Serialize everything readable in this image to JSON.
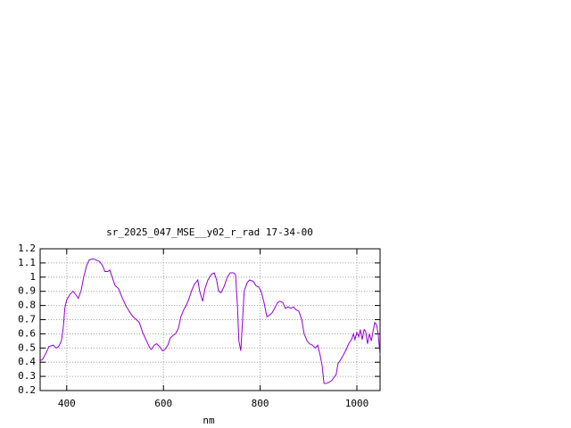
{
  "chart_data": {
    "type": "line",
    "title": "sr_2025_047_MSE__y02_r_rad 17-34-00",
    "x_label": "nm",
    "xlim": [
      345,
      1048
    ],
    "ylim": [
      0.2,
      1.2
    ],
    "xticks": [
      400,
      600,
      800,
      1000
    ],
    "yticks": [
      0.2,
      0.3,
      0.4,
      0.5,
      0.6,
      0.7,
      0.8,
      0.9,
      1,
      1.1,
      1.2
    ],
    "grid": true,
    "x": [
      345,
      350,
      358,
      363,
      372,
      378,
      383,
      389,
      393,
      396,
      400,
      407,
      413,
      418,
      424,
      430,
      435,
      441,
      446,
      454,
      461,
      468,
      474,
      479,
      485,
      489,
      494,
      500,
      507,
      514,
      522,
      529,
      537,
      544,
      550,
      557,
      565,
      572,
      575,
      581,
      586,
      592,
      598,
      603,
      609,
      614,
      620,
      625,
      631,
      636,
      642,
      647,
      653,
      659,
      664,
      671,
      675,
      681,
      686,
      692,
      699,
      705,
      710,
      714,
      719,
      725,
      732,
      738,
      745,
      749,
      753,
      756,
      760,
      764,
      767,
      773,
      778,
      786,
      791,
      797,
      802,
      808,
      814,
      819,
      825,
      830,
      836,
      841,
      847,
      852,
      858,
      863,
      869,
      874,
      880,
      886,
      891,
      897,
      902,
      908,
      914,
      919,
      924,
      928,
      932,
      937,
      943,
      948,
      954,
      957,
      961,
      967,
      972,
      978,
      983,
      989,
      993,
      996,
      1000,
      1004,
      1007,
      1011,
      1015,
      1018,
      1022,
      1026,
      1030,
      1033,
      1037,
      1041,
      1044,
      1048
    ],
    "series": [
      {
        "color": "#9400d3",
        "values": [
          0.41,
          0.42,
          0.47,
          0.51,
          0.52,
          0.5,
          0.51,
          0.55,
          0.65,
          0.78,
          0.84,
          0.88,
          0.9,
          0.88,
          0.85,
          0.91,
          1.0,
          1.08,
          1.12,
          1.13,
          1.12,
          1.11,
          1.08,
          1.04,
          1.04,
          1.05,
          1.0,
          0.94,
          0.92,
          0.86,
          0.8,
          0.76,
          0.72,
          0.7,
          0.68,
          0.61,
          0.55,
          0.5,
          0.49,
          0.52,
          0.53,
          0.51,
          0.48,
          0.49,
          0.52,
          0.57,
          0.59,
          0.6,
          0.64,
          0.72,
          0.77,
          0.8,
          0.85,
          0.91,
          0.95,
          0.98,
          0.9,
          0.83,
          0.92,
          0.98,
          1.02,
          1.03,
          0.98,
          0.9,
          0.89,
          0.93,
          1.0,
          1.03,
          1.03,
          1.02,
          0.8,
          0.55,
          0.48,
          0.72,
          0.9,
          0.96,
          0.98,
          0.97,
          0.94,
          0.93,
          0.9,
          0.82,
          0.72,
          0.73,
          0.75,
          0.78,
          0.82,
          0.83,
          0.82,
          0.78,
          0.79,
          0.78,
          0.79,
          0.77,
          0.76,
          0.7,
          0.6,
          0.55,
          0.53,
          0.52,
          0.5,
          0.52,
          0.45,
          0.38,
          0.25,
          0.25,
          0.26,
          0.27,
          0.3,
          0.31,
          0.39,
          0.42,
          0.45,
          0.49,
          0.53,
          0.56,
          0.6,
          0.56,
          0.61,
          0.58,
          0.63,
          0.56,
          0.63,
          0.62,
          0.53,
          0.6,
          0.55,
          0.61,
          0.68,
          0.66,
          0.6,
          0.45
        ]
      }
    ]
  }
}
